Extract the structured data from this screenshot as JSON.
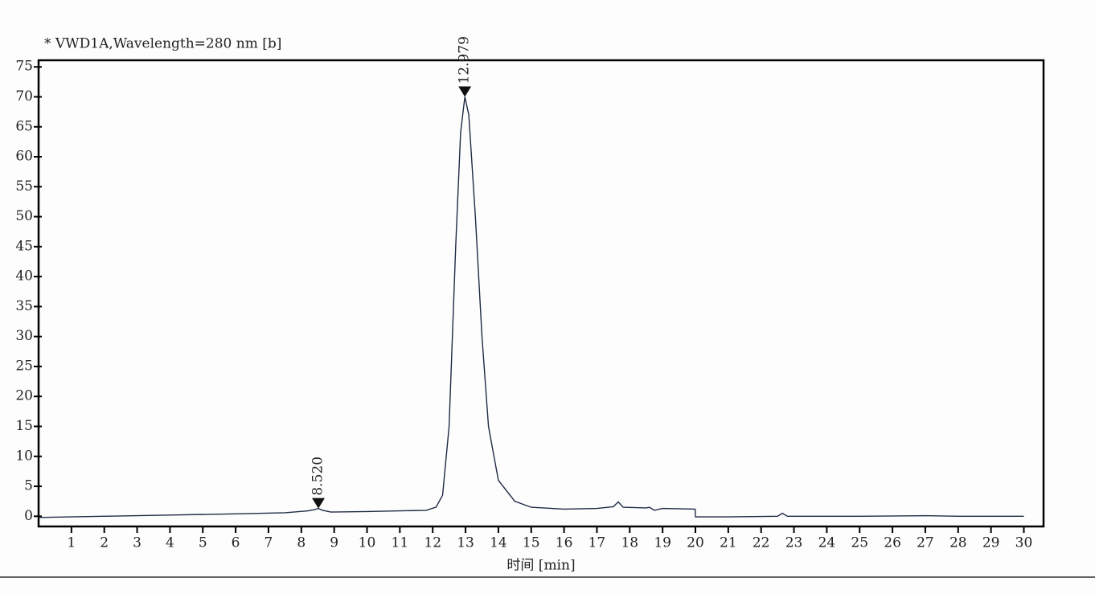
{
  "chart_data": {
    "type": "line",
    "title": "* VWD1A,Wavelength=280 nm [b]",
    "x_label": "时间 [min]",
    "color": "#1f2a44",
    "x": [
      0,
      2,
      4,
      6,
      7.5,
      8.2,
      8.4,
      8.52,
      8.65,
      8.9,
      10,
      11,
      11.8,
      12.1,
      12.3,
      12.5,
      12.7,
      12.85,
      12.979,
      13.1,
      13.3,
      13.5,
      13.7,
      14,
      14.5,
      15,
      16,
      17,
      17.5,
      17.65,
      17.8,
      18.5,
      18.6,
      18.75,
      19,
      19.99,
      20.0,
      21,
      22.5,
      22.65,
      22.8,
      25,
      27,
      28,
      30
    ],
    "values": [
      -0.2,
      0.0,
      0.2,
      0.4,
      0.6,
      0.9,
      1.1,
      1.3,
      1.0,
      0.7,
      0.8,
      0.9,
      1.0,
      1.5,
      3.5,
      15,
      45,
      64,
      70,
      67,
      50,
      30,
      15,
      6,
      2.5,
      1.5,
      1.2,
      1.3,
      1.6,
      2.4,
      1.5,
      1.4,
      1.5,
      1.0,
      1.3,
      1.2,
      -0.1,
      -0.1,
      0.0,
      0.5,
      0.0,
      0.0,
      0.1,
      0.0,
      0.0
    ],
    "peaks": [
      {
        "x": 8.52,
        "y": 1.3,
        "label": "8.520"
      },
      {
        "x": 12.979,
        "y": 70,
        "label": "12.979"
      }
    ],
    "xlim": [
      0,
      30.6
    ],
    "ylim": [
      -1.7,
      76.1
    ],
    "xticks": [
      1,
      2,
      3,
      4,
      5,
      6,
      7,
      8,
      9,
      10,
      11,
      12,
      13,
      14,
      15,
      16,
      17,
      18,
      19,
      20,
      21,
      22,
      23,
      24,
      25,
      26,
      27,
      28,
      29,
      30
    ],
    "yticks": [
      0,
      5,
      10,
      15,
      20,
      25,
      30,
      35,
      40,
      45,
      50,
      55,
      60,
      65,
      70,
      75
    ]
  }
}
